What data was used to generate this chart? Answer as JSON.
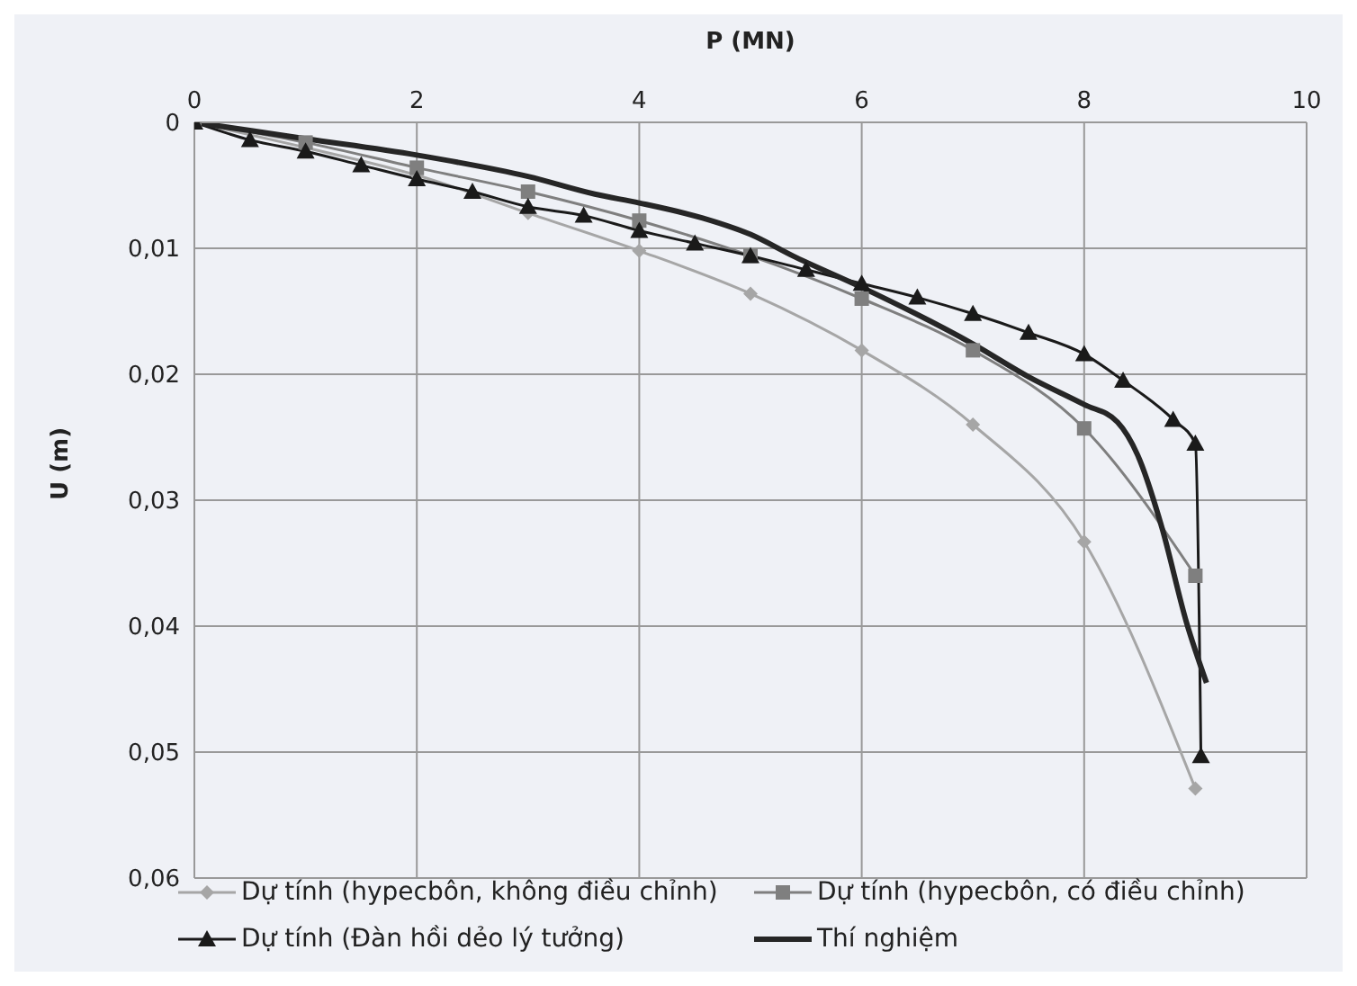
{
  "chart_data": {
    "type": "line",
    "xlabel": "P (MN)",
    "ylabel": "U (m)",
    "xlim": [
      0,
      10
    ],
    "xticks": [
      0,
      2,
      4,
      6,
      8,
      10
    ],
    "ylim": [
      0.06,
      0
    ],
    "yticks": [
      {
        "value": 0,
        "label": "0"
      },
      {
        "value": 0.01,
        "label": "0,01"
      },
      {
        "value": 0.02,
        "label": "0,02"
      },
      {
        "value": 0.03,
        "label": "0,03"
      },
      {
        "value": 0.04,
        "label": "0,04"
      },
      {
        "value": 0.05,
        "label": "0,05"
      },
      {
        "value": 0.06,
        "label": "0,06"
      }
    ],
    "grid": true,
    "legend": "bottom",
    "series": [
      {
        "name": "Dự tính (hypecbôn, không điều chỉnh)",
        "color": "#a6a6a6",
        "marker": "diamond",
        "x": [
          0,
          1,
          2,
          3,
          4,
          5,
          6,
          7,
          8,
          9
        ],
        "values": [
          0,
          0.002,
          0.0042,
          0.0072,
          0.0102,
          0.0136,
          0.0181,
          0.024,
          0.0333,
          0.0529
        ]
      },
      {
        "name": "Dự tính (hypecbôn, có điều chỉnh)",
        "color": "#7f7f7f",
        "marker": "square",
        "x": [
          0,
          1,
          2,
          3,
          4,
          5,
          6,
          7,
          8,
          9
        ],
        "values": [
          0,
          0.0016,
          0.0036,
          0.0055,
          0.0078,
          0.0106,
          0.014,
          0.0181,
          0.0243,
          0.036
        ]
      },
      {
        "name": "Dự tính (Đàn hồi dẻo lý tưởng)",
        "color": "#1a1a1a",
        "marker": "triangle",
        "x": [
          0,
          0.5,
          1,
          1.5,
          2,
          2.5,
          3,
          3.5,
          4,
          4.5,
          5,
          5.5,
          6,
          6.5,
          7,
          7.5,
          8,
          8.35,
          8.8,
          9,
          9.05
        ],
        "values": [
          0,
          0.0014,
          0.0023,
          0.0034,
          0.0045,
          0.0055,
          0.0067,
          0.0074,
          0.0086,
          0.0096,
          0.0106,
          0.0117,
          0.0128,
          0.0139,
          0.0152,
          0.0167,
          0.0184,
          0.0205,
          0.0236,
          0.0255,
          0.0503
        ]
      },
      {
        "name": "Thí nghiệm",
        "color": "#262626",
        "marker": "none",
        "x": [
          0,
          1,
          2,
          3,
          3.6,
          4,
          4.57,
          5,
          5.38,
          6,
          7,
          7.5,
          8,
          8.3,
          8.48,
          8.7,
          8.92,
          9.1
        ],
        "values": [
          0,
          0.0013,
          0.0026,
          0.0043,
          0.0057,
          0.0064,
          0.0076,
          0.0089,
          0.0106,
          0.0131,
          0.0176,
          0.0202,
          0.0224,
          0.0238,
          0.0264,
          0.0322,
          0.0397,
          0.0445
        ]
      }
    ]
  }
}
